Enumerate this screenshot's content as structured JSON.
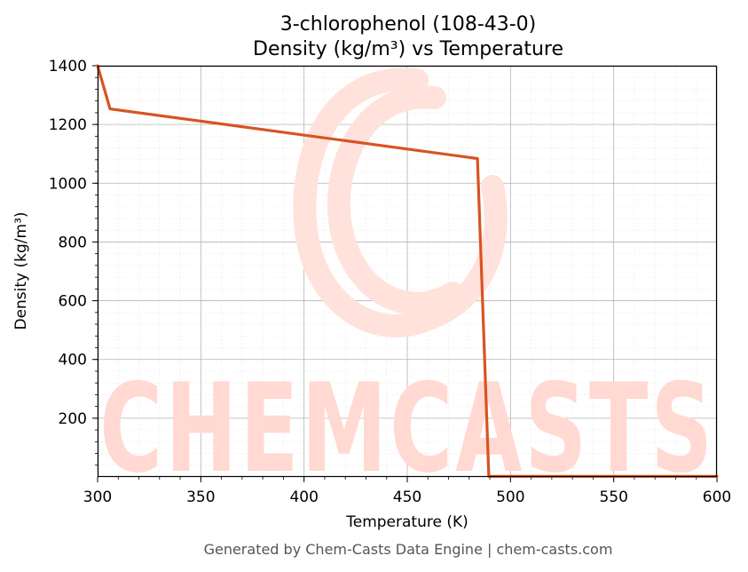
{
  "chart_data": {
    "type": "line",
    "title_line1": "3-chlorophenol (108-43-0)",
    "title_line2": "Density (kg/m³) vs Temperature",
    "xlabel": "Temperature (K)",
    "ylabel": "Density (kg/m³)",
    "xlim": [
      300,
      600
    ],
    "ylim": [
      0,
      1400
    ],
    "x_ticks": [
      300,
      350,
      400,
      450,
      500,
      550,
      600
    ],
    "y_ticks": [
      200,
      400,
      600,
      800,
      1000,
      1200,
      1400
    ],
    "grid": true,
    "series": [
      {
        "color": "#d95323",
        "x": [
          300,
          306,
          484,
          489.5,
          490,
          600
        ],
        "y": [
          1400,
          1253,
          1084,
          2,
          2,
          2
        ]
      }
    ]
  },
  "watermark": {
    "text": "CHEMCASTS",
    "color": "#ffd9d2"
  },
  "footer": "Generated by Chem-Casts Data Engine | chem-casts.com"
}
